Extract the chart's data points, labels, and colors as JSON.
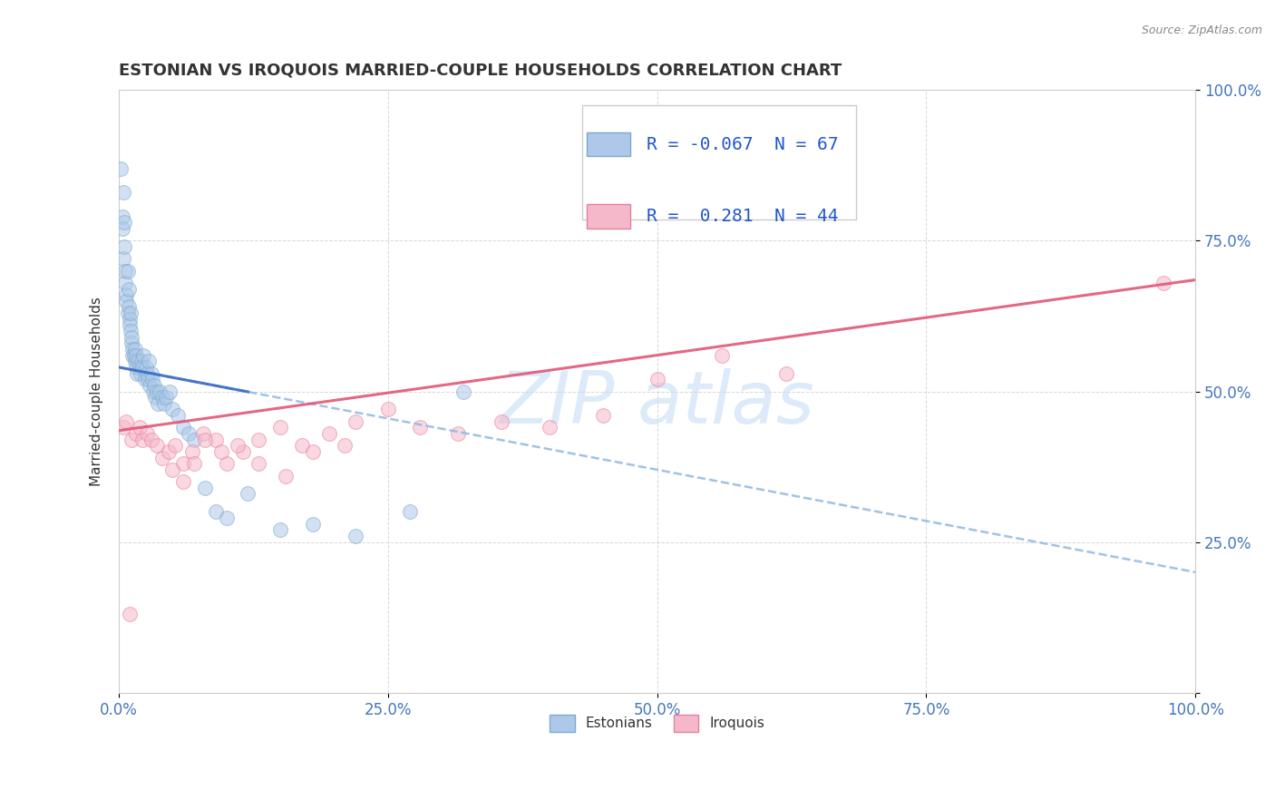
{
  "title": "ESTONIAN VS IROQUOIS MARRIED-COUPLE HOUSEHOLDS CORRELATION CHART",
  "source_text": "Source: ZipAtlas.com",
  "ylabel": "Married-couple Households",
  "xlim": [
    0,
    1
  ],
  "ylim": [
    0,
    1
  ],
  "xticks": [
    0,
    0.25,
    0.5,
    0.75,
    1.0
  ],
  "yticks": [
    0,
    0.25,
    0.5,
    0.75,
    1.0
  ],
  "xticklabels": [
    "0.0%",
    "25.0%",
    "50.0%",
    "75.0%",
    "100.0%"
  ],
  "yticklabels": [
    "",
    "25.0%",
    "50.0%",
    "75.0%",
    "100.0%"
  ],
  "legend_R1": "-0.067",
  "legend_N1": "67",
  "legend_R2": "0.281",
  "legend_N2": "44",
  "blue_color": "#adc8e8",
  "blue_edge": "#7aaad0",
  "pink_color": "#f5b8cb",
  "pink_edge": "#e8809a",
  "blue_line_color": "#3a6bc4",
  "pink_line_color": "#e05878",
  "blue_dash_color": "#90b8e0",
  "background_color": "#ffffff",
  "estonians_x": [
    0.002,
    0.003,
    0.003,
    0.004,
    0.004,
    0.005,
    0.005,
    0.006,
    0.006,
    0.007,
    0.007,
    0.008,
    0.008,
    0.009,
    0.009,
    0.01,
    0.01,
    0.011,
    0.011,
    0.012,
    0.012,
    0.013,
    0.013,
    0.014,
    0.015,
    0.015,
    0.016,
    0.016,
    0.017,
    0.018,
    0.019,
    0.02,
    0.021,
    0.022,
    0.023,
    0.024,
    0.025,
    0.026,
    0.027,
    0.028,
    0.029,
    0.03,
    0.031,
    0.032,
    0.033,
    0.034,
    0.035,
    0.036,
    0.038,
    0.04,
    0.042,
    0.044,
    0.047,
    0.05,
    0.055,
    0.06,
    0.065,
    0.07,
    0.08,
    0.09,
    0.1,
    0.12,
    0.15,
    0.18,
    0.22,
    0.27,
    0.32
  ],
  "estonians_y": [
    0.87,
    0.79,
    0.77,
    0.83,
    0.72,
    0.78,
    0.74,
    0.7,
    0.68,
    0.66,
    0.65,
    0.63,
    0.7,
    0.67,
    0.64,
    0.62,
    0.61,
    0.63,
    0.6,
    0.58,
    0.59,
    0.57,
    0.56,
    0.56,
    0.57,
    0.55,
    0.54,
    0.56,
    0.53,
    0.55,
    0.54,
    0.53,
    0.55,
    0.54,
    0.56,
    0.52,
    0.54,
    0.53,
    0.52,
    0.55,
    0.51,
    0.53,
    0.52,
    0.5,
    0.51,
    0.49,
    0.5,
    0.48,
    0.5,
    0.49,
    0.48,
    0.49,
    0.5,
    0.47,
    0.46,
    0.44,
    0.43,
    0.42,
    0.34,
    0.3,
    0.29,
    0.33,
    0.27,
    0.28,
    0.26,
    0.3,
    0.5
  ],
  "iroquois_x": [
    0.004,
    0.007,
    0.01,
    0.012,
    0.016,
    0.019,
    0.022,
    0.026,
    0.03,
    0.035,
    0.04,
    0.046,
    0.052,
    0.06,
    0.068,
    0.078,
    0.09,
    0.1,
    0.115,
    0.13,
    0.15,
    0.17,
    0.195,
    0.22,
    0.25,
    0.28,
    0.315,
    0.355,
    0.4,
    0.45,
    0.05,
    0.06,
    0.07,
    0.08,
    0.095,
    0.11,
    0.13,
    0.155,
    0.18,
    0.21,
    0.5,
    0.56,
    0.62,
    0.97
  ],
  "iroquois_y": [
    0.44,
    0.45,
    0.13,
    0.42,
    0.43,
    0.44,
    0.42,
    0.43,
    0.42,
    0.41,
    0.39,
    0.4,
    0.41,
    0.38,
    0.4,
    0.43,
    0.42,
    0.38,
    0.4,
    0.42,
    0.44,
    0.41,
    0.43,
    0.45,
    0.47,
    0.44,
    0.43,
    0.45,
    0.44,
    0.46,
    0.37,
    0.35,
    0.38,
    0.42,
    0.4,
    0.41,
    0.38,
    0.36,
    0.4,
    0.41,
    0.52,
    0.56,
    0.53,
    0.68
  ],
  "marker_size": 130,
  "alpha": 0.55,
  "title_fontsize": 13,
  "axis_label_fontsize": 11,
  "tick_fontsize": 12,
  "legend_fontsize": 14,
  "watermark_color": "#c5ddf5",
  "watermark_alpha": 0.6
}
